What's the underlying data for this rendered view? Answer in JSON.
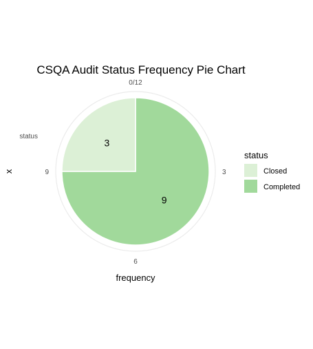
{
  "chart_data": {
    "type": "pie",
    "title": "CSQA Audit Status Frequency Pie Chart",
    "xlabel": "frequency",
    "ylabel": "x",
    "y_tick_label": "status",
    "angular_ticks": [
      "0/12",
      "3",
      "6",
      "9"
    ],
    "total": 12,
    "categories": [
      "Completed",
      "Closed"
    ],
    "values": [
      9,
      3
    ],
    "slice_labels": [
      "9",
      "3"
    ],
    "colors": [
      "#a1d99b",
      "#dcf0d6"
    ],
    "grid": true,
    "legend": {
      "title": "status",
      "position": "right",
      "entries": [
        {
          "label": "Closed",
          "color": "#dcf0d6"
        },
        {
          "label": "Completed",
          "color": "#a1d99b"
        }
      ]
    }
  }
}
